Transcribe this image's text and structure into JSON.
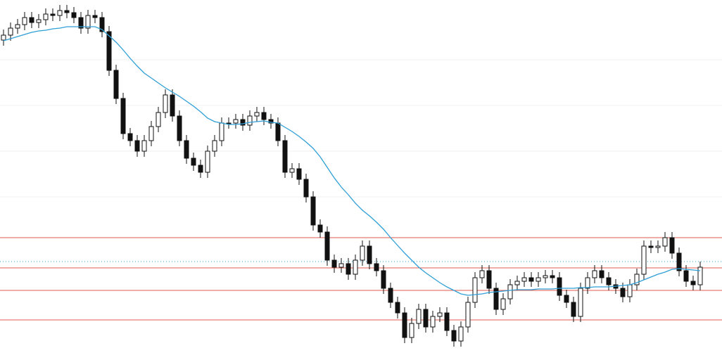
{
  "chart_data": {
    "type": "candlestick",
    "categories": [
      null,
      null,
      null,
      null,
      null,
      null,
      null,
      null,
      null,
      null,
      null,
      null,
      null,
      null,
      null,
      null,
      null,
      null,
      null,
      null,
      null,
      null,
      null,
      null,
      null,
      null,
      null,
      null,
      null,
      null,
      null,
      null,
      null,
      null,
      null,
      null,
      null,
      null,
      null,
      null,
      null,
      null,
      null,
      null,
      null,
      null,
      null,
      null,
      null,
      null,
      null,
      null,
      null,
      null,
      null,
      null,
      null,
      null,
      null,
      null,
      null,
      null,
      null,
      null,
      null,
      null,
      null,
      null,
      null,
      null,
      null,
      null,
      null,
      null,
      null,
      null,
      null,
      null,
      null,
      null,
      null,
      null,
      null,
      null,
      null,
      null,
      null,
      null,
      null,
      null,
      null,
      null,
      null,
      null,
      null,
      null,
      null,
      null,
      null,
      null
    ],
    "open": [
      455,
      462,
      472,
      477,
      487,
      480,
      484,
      492,
      490,
      497,
      494,
      487,
      472,
      490,
      487,
      467,
      412,
      372,
      322,
      312,
      297,
      312,
      332,
      352,
      377,
      347,
      312,
      287,
      277,
      267,
      297,
      312,
      337,
      337,
      342,
      334,
      347,
      352,
      342,
      337,
      312,
      267,
      272,
      257,
      232,
      192,
      182,
      142,
      132,
      137,
      122,
      142,
      162,
      137,
      127,
      102,
      82,
      67,
      32,
      52,
      72,
      47,
      62,
      67,
      42,
      27,
      47,
      82,
      117,
      127,
      102,
      72,
      87,
      107,
      112,
      117,
      112,
      117,
      120,
      117,
      92,
      82,
      62,
      102,
      117,
      127,
      117,
      107,
      102,
      90,
      107,
      122,
      162,
      160,
      162,
      174,
      152,
      127,
      112,
      107
    ],
    "high": [
      470,
      480,
      485,
      495,
      495,
      492,
      500,
      500,
      505,
      505,
      502,
      495,
      498,
      498,
      495,
      475,
      420,
      380,
      330,
      320,
      320,
      340,
      360,
      385,
      385,
      355,
      320,
      295,
      285,
      305,
      320,
      345,
      345,
      350,
      350,
      355,
      360,
      360,
      350,
      345,
      320,
      280,
      280,
      265,
      240,
      200,
      190,
      150,
      145,
      145,
      150,
      170,
      170,
      145,
      135,
      110,
      90,
      75,
      60,
      80,
      80,
      70,
      75,
      75,
      50,
      55,
      90,
      125,
      135,
      135,
      110,
      95,
      115,
      120,
      125,
      125,
      125,
      128,
      128,
      125,
      100,
      90,
      110,
      125,
      135,
      135,
      125,
      115,
      110,
      115,
      130,
      170,
      170,
      170,
      182,
      182,
      160,
      135,
      120,
      140
    ],
    "low": [
      447,
      454,
      464,
      469,
      472,
      472,
      476,
      482,
      482,
      486,
      479,
      464,
      464,
      479,
      459,
      404,
      364,
      314,
      304,
      289,
      289,
      304,
      324,
      344,
      339,
      304,
      279,
      269,
      259,
      259,
      289,
      304,
      329,
      329,
      326,
      326,
      339,
      334,
      329,
      304,
      259,
      259,
      249,
      224,
      184,
      174,
      134,
      124,
      124,
      114,
      114,
      134,
      129,
      119,
      94,
      74,
      59,
      24,
      24,
      44,
      39,
      39,
      54,
      34,
      19,
      19,
      39,
      74,
      109,
      94,
      64,
      64,
      79,
      99,
      104,
      104,
      104,
      109,
      109,
      84,
      74,
      54,
      54,
      94,
      109,
      109,
      99,
      94,
      82,
      82,
      99,
      114,
      152,
      152,
      154,
      144,
      119,
      104,
      99,
      99
    ],
    "close": [
      462,
      472,
      477,
      487,
      480,
      484,
      492,
      490,
      497,
      494,
      487,
      472,
      490,
      487,
      467,
      412,
      372,
      322,
      312,
      297,
      312,
      332,
      352,
      377,
      347,
      312,
      287,
      277,
      267,
      297,
      312,
      337,
      337,
      342,
      334,
      347,
      352,
      342,
      337,
      312,
      267,
      272,
      257,
      232,
      192,
      182,
      142,
      132,
      137,
      122,
      142,
      162,
      137,
      127,
      102,
      82,
      67,
      32,
      52,
      72,
      47,
      62,
      67,
      42,
      27,
      47,
      82,
      117,
      127,
      102,
      72,
      87,
      107,
      112,
      117,
      112,
      117,
      120,
      117,
      92,
      82,
      62,
      102,
      117,
      127,
      117,
      107,
      102,
      90,
      107,
      122,
      162,
      160,
      162,
      174,
      152,
      127,
      112,
      107,
      132
    ],
    "up_color": "#ffffff",
    "down_color": "#111111",
    "wick_color": "#111111",
    "ma": {
      "color": "#2e9fd6",
      "values": [
        454,
        457,
        460,
        463,
        466,
        468,
        469,
        471,
        472,
        474,
        474,
        474,
        474,
        474,
        470,
        461,
        452,
        441,
        429,
        418,
        408,
        401,
        394,
        387,
        381,
        375,
        368,
        361,
        353,
        344,
        339,
        337,
        335,
        335,
        336,
        338,
        339,
        340,
        338,
        337,
        331,
        325,
        318,
        310,
        301,
        289,
        274,
        259,
        246,
        235,
        223,
        213,
        205,
        196,
        186,
        174,
        163,
        152,
        142,
        132,
        124,
        117,
        110,
        104,
        99,
        94,
        92,
        93,
        94,
        96,
        97,
        98,
        99,
        100,
        100,
        100,
        101,
        101,
        101,
        102,
        102,
        102,
        103,
        103,
        104,
        104,
        104,
        105,
        106,
        107,
        110,
        114,
        118,
        122,
        125,
        129,
        130,
        129,
        128,
        127
      ]
    },
    "hlines": [
      {
        "value": 174,
        "color": "#e0584c"
      },
      {
        "value": 131,
        "color": "#e0584c"
      },
      {
        "value": 99,
        "color": "#e0584c"
      },
      {
        "value": 57,
        "color": "#e0584c"
      }
    ],
    "price_line": {
      "value": 140,
      "color": "#2e9fd6"
    },
    "ylim": [
      0,
      512
    ],
    "yticks": [
      427,
      362,
      297,
      232
    ],
    "grid": true
  }
}
